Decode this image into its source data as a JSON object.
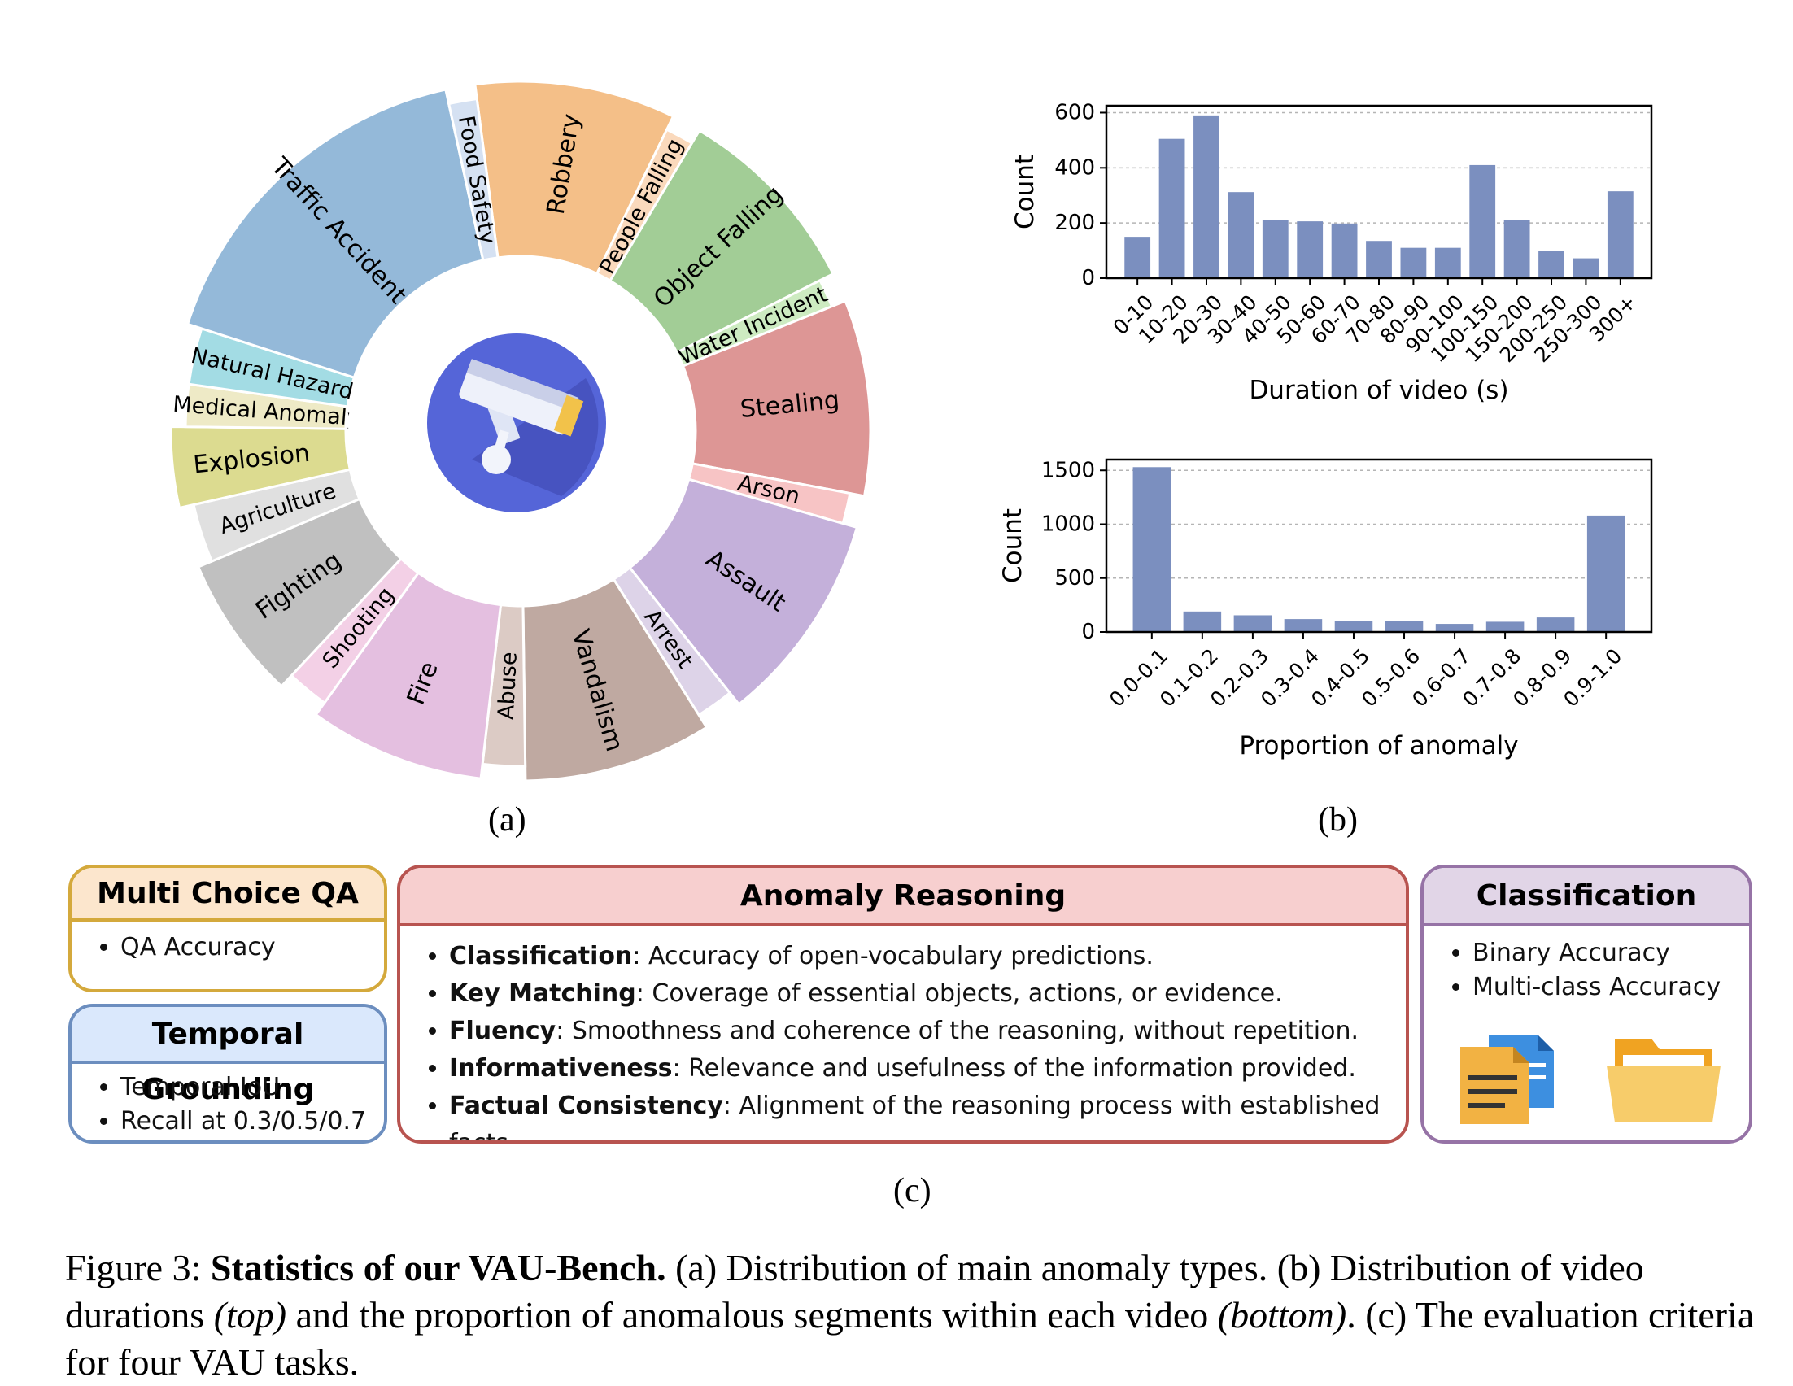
{
  "panel_a": {
    "label": "(a)",
    "segments": [
      {
        "name": "Robbery",
        "value": 8.2,
        "color": "#f4bf88"
      },
      {
        "name": "People Falling",
        "value": 1.2,
        "color": "#fad9bc"
      },
      {
        "name": "Object Falling",
        "value": 8.0,
        "color": "#a2cd96"
      },
      {
        "name": "Water Incident",
        "value": 1.2,
        "color": "#cdebc1"
      },
      {
        "name": "Stealing",
        "value": 8.0,
        "color": "#dd9695"
      },
      {
        "name": "Arson",
        "value": 1.3,
        "color": "#f7c4c5"
      },
      {
        "name": "Assault",
        "value": 8.7,
        "color": "#c4b0da"
      },
      {
        "name": "Arrest",
        "value": 1.6,
        "color": "#ddd3e8"
      },
      {
        "name": "Vandalism",
        "value": 7.7,
        "color": "#bfa9a1"
      },
      {
        "name": "Abuse",
        "value": 1.8,
        "color": "#dccbc5"
      },
      {
        "name": "Fire",
        "value": 7.2,
        "color": "#e4bfe0"
      },
      {
        "name": "Shooting",
        "value": 1.8,
        "color": "#f3d0e6"
      },
      {
        "name": "Fighting",
        "value": 5.9,
        "color": "#c0c0c0"
      },
      {
        "name": "Agriculture",
        "value": 2.5,
        "color": "#e0e0e0"
      },
      {
        "name": "Explosion",
        "value": 3.3,
        "color": "#dcdb90"
      },
      {
        "name": "Medical Anomaly",
        "value": 1.8,
        "color": "#eeeac6"
      },
      {
        "name": "Natural Hazard",
        "value": 2.4,
        "color": "#a3dce4"
      },
      {
        "name": "Traffic Accident",
        "value": 14.7,
        "color": "#94b9d9"
      },
      {
        "name": "Food Safety",
        "value": 1.2,
        "color": "#d5e1f2"
      }
    ],
    "icon": "surveillance-camera-icon"
  },
  "panel_b": {
    "label": "(b)"
  },
  "chart_data": [
    {
      "type": "bar",
      "categories": [
        "0-10",
        "10-20",
        "20-30",
        "30-40",
        "40-50",
        "50-60",
        "60-70",
        "70-80",
        "80-90",
        "90-100",
        "100-150",
        "150-200",
        "200-250",
        "250-300",
        "300+"
      ],
      "values": [
        150,
        505,
        590,
        312,
        212,
        206,
        198,
        135,
        110,
        110,
        410,
        212,
        100,
        72,
        315
      ],
      "xlabel": "Duration of video (s)",
      "ylabel": "Count",
      "yticks": [
        0,
        200,
        400,
        600
      ],
      "ylim": [
        0,
        625
      ],
      "grid": true,
      "color": "#7b8fbf"
    },
    {
      "type": "bar",
      "categories": [
        "0.0-0.1",
        "0.1-0.2",
        "0.2-0.3",
        "0.3-0.4",
        "0.4-0.5",
        "0.5-0.6",
        "0.6-0.7",
        "0.7-0.8",
        "0.8-0.9",
        "0.9-1.0"
      ],
      "values": [
        1530,
        190,
        155,
        120,
        100,
        100,
        75,
        95,
        135,
        1080
      ],
      "xlabel": "Proportion of anomaly",
      "ylabel": "Count",
      "yticks": [
        0,
        500,
        1000,
        1500
      ],
      "ylim": [
        0,
        1600
      ],
      "grid": true,
      "color": "#7b8fbf"
    }
  ],
  "panel_c": {
    "label": "(c)",
    "mcqa": {
      "title": "Multi Choice QA",
      "items": [
        "QA Accuracy"
      ],
      "border": "#d4a93c",
      "header_bg": "#fce6cd"
    },
    "tg": {
      "title": "Temporal Grounding",
      "items": [
        "Temporal IoU",
        "Recall at 0.3/0.5/0.7"
      ],
      "border": "#6c8ebf",
      "header_bg": "#dae8fc"
    },
    "ar": {
      "title": "Anomaly Reasoning",
      "border": "#b85450",
      "header_bg": "#f7cfcf",
      "items": [
        {
          "term": "Classification",
          "desc": ": Accuracy of open-vocabulary predictions."
        },
        {
          "term": "Key Matching",
          "desc": ": Coverage of essential objects, actions, or evidence."
        },
        {
          "term": "Fluency",
          "desc": ": Smoothness and coherence of the reasoning, without repetition."
        },
        {
          "term": "Informativeness",
          "desc": ": Relevance and usefulness of the information provided."
        },
        {
          "term": "Factual Consistency",
          "desc": ": Alignment of the reasoning process with established facts."
        }
      ]
    },
    "cls": {
      "title": "Classification",
      "items": [
        "Binary Accuracy",
        "Multi-class Accuracy"
      ],
      "border": "#9673a6",
      "header_bg": "#e1d5e7",
      "icons": [
        "documents-icon",
        "folder-icon"
      ]
    }
  },
  "caption": {
    "prefix": "Figure 3: ",
    "bold": "Statistics of our VAU-Bench.",
    "t1": " (a) Distribution of main anomaly types. (b) Distribution of video durations ",
    "i1": "(top)",
    "t2": " and the proportion of anomalous segments within each video ",
    "i2": "(bottom)",
    "t3": ". (c) The evaluation criteria for four VAU tasks."
  }
}
